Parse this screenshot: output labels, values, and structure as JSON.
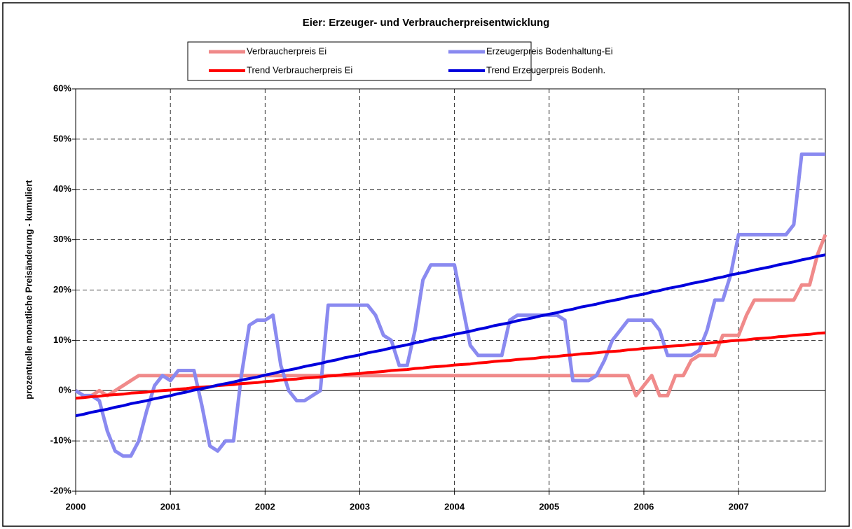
{
  "chart_data": {
    "type": "line",
    "title": "Eier: Erzeuger- und Verbraucherpreisentwicklung",
    "y_label": "prozentuelle monatliche Preisänderung - kumuliert",
    "legend": "top",
    "grid": true,
    "categories": [
      "2000",
      null,
      null,
      null,
      null,
      null,
      null,
      null,
      null,
      null,
      null,
      null,
      "2001",
      null,
      null,
      null,
      null,
      null,
      null,
      null,
      null,
      null,
      null,
      null,
      "2002",
      null,
      null,
      null,
      null,
      null,
      null,
      null,
      null,
      null,
      null,
      null,
      "2003",
      null,
      null,
      null,
      null,
      null,
      null,
      null,
      null,
      null,
      null,
      null,
      "2004",
      null,
      null,
      null,
      null,
      null,
      null,
      null,
      null,
      null,
      null,
      null,
      "2005",
      null,
      null,
      null,
      null,
      null,
      null,
      null,
      null,
      null,
      null,
      null,
      "2006",
      null,
      null,
      null,
      null,
      null,
      null,
      null,
      null,
      null,
      null,
      null,
      "2007",
      null,
      null,
      null,
      null,
      null,
      null,
      null,
      null,
      null,
      null,
      null
    ],
    "ylim": [
      -20,
      60
    ],
    "yticks": [
      {
        "value": -20,
        "label": "-20%"
      },
      {
        "value": -10,
        "label": "-10%"
      },
      {
        "value": 0,
        "label": "0%"
      },
      {
        "value": 10,
        "label": "10%"
      },
      {
        "value": 20,
        "label": "20%"
      },
      {
        "value": 30,
        "label": "30%"
      },
      {
        "value": 40,
        "label": "40%"
      },
      {
        "value": 50,
        "label": "50%"
      },
      {
        "value": 60,
        "label": "60%"
      }
    ],
    "series": [
      {
        "name": "Verbraucherpreis Ei",
        "color": "#f08a8a",
        "width": 5,
        "values": [
          0,
          -1,
          -1,
          0,
          -1,
          0,
          1,
          2,
          3,
          3,
          3,
          3,
          3,
          3,
          3,
          3,
          3,
          3,
          3,
          3,
          3,
          3,
          3,
          3,
          3,
          3,
          3,
          3,
          3,
          3,
          3,
          3,
          3,
          3,
          3,
          3,
          3,
          3,
          3,
          3,
          3,
          3,
          3,
          3,
          3,
          3,
          3,
          3,
          3,
          3,
          3,
          3,
          3,
          3,
          3,
          3,
          3,
          3,
          3,
          3,
          3,
          3,
          3,
          3,
          3,
          3,
          3,
          3,
          3,
          3,
          3,
          -1,
          1,
          3,
          -1,
          -1,
          3,
          3,
          6,
          7,
          7,
          7,
          11,
          11,
          11,
          15,
          18,
          18,
          18,
          18,
          18,
          18,
          21,
          21,
          27,
          31
        ]
      },
      {
        "name": "Erzeugerpreis Bodenhaltung-Ei",
        "color": "#8a8af0",
        "width": 5,
        "values": [
          0,
          -1,
          -1,
          -2,
          -8,
          -12,
          -13,
          -13,
          -10,
          -4,
          1,
          3,
          2,
          4,
          4,
          4,
          -3,
          -11,
          -12,
          -10,
          -10,
          3,
          13,
          14,
          14,
          15,
          5,
          0,
          -2,
          -2,
          -1,
          0,
          17,
          17,
          17,
          17,
          17,
          17,
          15,
          11,
          10,
          5,
          5,
          12,
          22,
          25,
          25,
          25,
          25,
          17,
          9,
          7,
          7,
          7,
          7,
          14,
          15,
          15,
          15,
          15,
          15,
          15,
          14,
          2,
          2,
          2,
          3,
          6,
          10,
          12,
          14,
          14,
          14,
          14,
          12,
          7,
          7,
          7,
          7,
          8,
          12,
          18,
          18,
          23,
          31,
          31,
          31,
          31,
          31,
          31,
          31,
          33,
          47,
          47,
          47,
          47
        ]
      },
      {
        "name": "Trend Verbraucherpreis Ei",
        "color": "#ff0000",
        "width": 4,
        "values": [
          -1.5,
          -1.4,
          -1.2,
          -1.1,
          -0.9,
          -0.8,
          -0.7,
          -0.5,
          -0.4,
          -0.3,
          -0.1,
          0.0,
          0.1,
          0.3,
          0.4,
          0.6,
          0.7,
          0.8,
          1.0,
          1.1,
          1.2,
          1.4,
          1.5,
          1.6,
          1.8,
          1.9,
          2.1,
          2.2,
          2.3,
          2.5,
          2.6,
          2.7,
          2.9,
          3.0,
          3.2,
          3.3,
          3.4,
          3.6,
          3.7,
          3.8,
          4.0,
          4.1,
          4.2,
          4.4,
          4.5,
          4.7,
          4.8,
          4.9,
          5.1,
          5.2,
          5.3,
          5.5,
          5.6,
          5.8,
          5.9,
          6.0,
          6.2,
          6.3,
          6.4,
          6.6,
          6.7,
          6.8,
          7.0,
          7.1,
          7.3,
          7.4,
          7.5,
          7.7,
          7.8,
          7.9,
          8.1,
          8.2,
          8.4,
          8.5,
          8.6,
          8.8,
          8.9,
          9.0,
          9.2,
          9.3,
          9.4,
          9.6,
          9.7,
          9.9,
          10.0,
          10.1,
          10.3,
          10.4,
          10.5,
          10.7,
          10.8,
          11.0,
          11.1,
          11.2,
          11.4,
          11.5
        ]
      },
      {
        "name": "Trend Erzeugerpreis Bodenh.",
        "color": "#0000dd",
        "width": 4,
        "values": [
          -5.0,
          -4.7,
          -4.3,
          -4.0,
          -3.7,
          -3.3,
          -3.0,
          -2.6,
          -2.3,
          -2.0,
          -1.6,
          -1.3,
          -1.0,
          -0.6,
          -0.3,
          0.1,
          0.4,
          0.7,
          1.1,
          1.4,
          1.7,
          2.1,
          2.4,
          2.7,
          3.1,
          3.4,
          3.8,
          4.1,
          4.4,
          4.8,
          5.1,
          5.4,
          5.8,
          6.1,
          6.5,
          6.8,
          7.1,
          7.5,
          7.8,
          8.1,
          8.5,
          8.8,
          9.1,
          9.5,
          9.8,
          10.2,
          10.5,
          10.8,
          11.2,
          11.5,
          11.8,
          12.2,
          12.5,
          12.9,
          13.2,
          13.5,
          13.9,
          14.2,
          14.5,
          14.9,
          15.2,
          15.5,
          15.9,
          16.2,
          16.6,
          16.9,
          17.2,
          17.6,
          17.9,
          18.2,
          18.6,
          18.9,
          19.2,
          19.6,
          19.9,
          20.3,
          20.6,
          20.9,
          21.3,
          21.6,
          21.9,
          22.3,
          22.6,
          23.0,
          23.3,
          23.6,
          24.0,
          24.3,
          24.6,
          25.0,
          25.3,
          25.6,
          26.0,
          26.3,
          26.7,
          27.0
        ]
      }
    ]
  }
}
